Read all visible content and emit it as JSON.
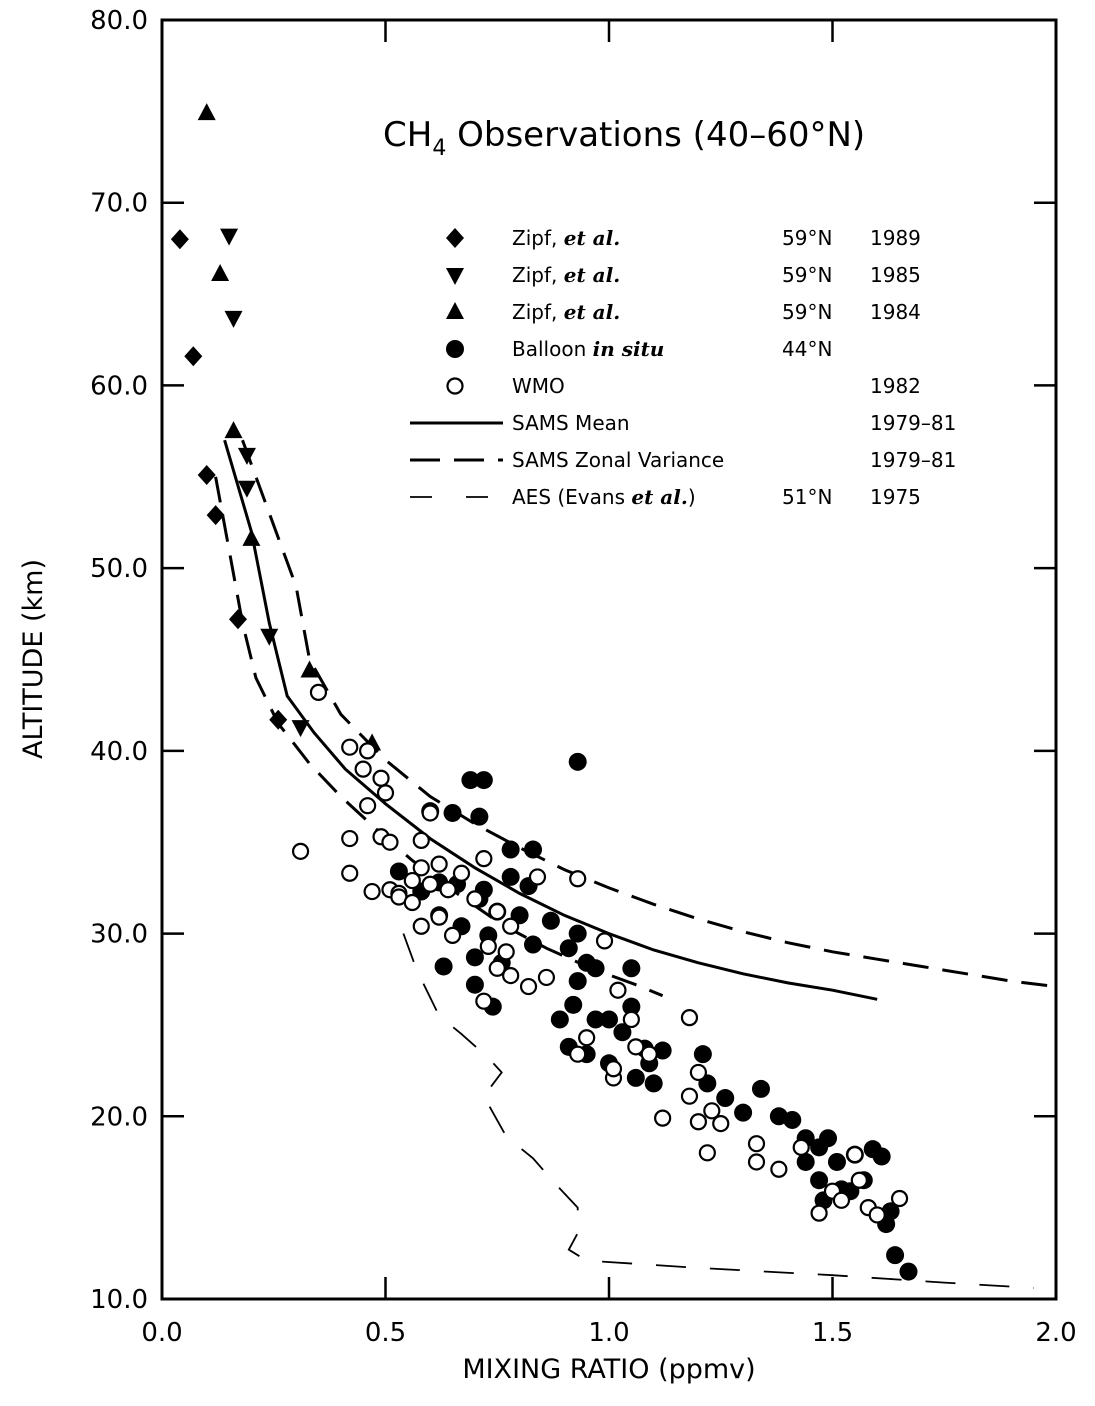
{
  "chart_data": {
    "type": "scatter",
    "title_main": "CH",
    "title_sub": "4",
    "title_rest": " Observations (40–60°N)",
    "xlabel": "MIXING RATIO (ppmv)",
    "ylabel": "ALTITUDE (km)",
    "xlim": [
      0.0,
      2.0
    ],
    "ylim": [
      10.0,
      80.0
    ],
    "xticks": [
      0.0,
      0.5,
      1.0,
      1.5,
      2.0
    ],
    "xtick_labels": [
      "0.0",
      "0.5",
      "1.0",
      "1.5",
      "2.0"
    ],
    "yticks": [
      10,
      20,
      30,
      40,
      50,
      60,
      70,
      80
    ],
    "ytick_labels": [
      "10.0",
      "20.0",
      "30.0",
      "40.0",
      "50.0",
      "60.0",
      "70.0",
      "80.0"
    ],
    "legend_position": "upper-right",
    "legend": [
      {
        "symbol": "diamond",
        "pre": "Zipf, ",
        "em": "et al.",
        "post": "",
        "lat": "59°N",
        "year": "1989"
      },
      {
        "symbol": "triangle-down",
        "pre": "Zipf, ",
        "em": "et al.",
        "post": "",
        "lat": "59°N",
        "year": "1985"
      },
      {
        "symbol": "triangle-up",
        "pre": "Zipf, ",
        "em": "et al.",
        "post": "",
        "lat": "59°N",
        "year": "1984"
      },
      {
        "symbol": "filled-circle",
        "pre": "Balloon ",
        "em": "in situ",
        "post": "",
        "lat": "44°N",
        "year": ""
      },
      {
        "symbol": "open-circle",
        "pre": "WMO",
        "em": "",
        "post": "",
        "lat": "",
        "year": "1982"
      },
      {
        "symbol": "solid-line",
        "pre": "SAMS Mean",
        "em": "",
        "post": "",
        "lat": "",
        "year": "1979–81"
      },
      {
        "symbol": "long-dash",
        "pre": "SAMS Zonal Variance",
        "em": "",
        "post": "",
        "lat": "",
        "year": "1979–81"
      },
      {
        "symbol": "short-dash",
        "pre": "AES (Evans ",
        "em": "et al.",
        "post": ")",
        "lat": "51°N",
        "year": "1975"
      }
    ],
    "series": [
      {
        "name": "Zipf, et al. 59°N 1989",
        "marker": "diamond",
        "points": [
          [
            0.04,
            68.0
          ],
          [
            0.07,
            61.6
          ],
          [
            0.1,
            55.1
          ],
          [
            0.12,
            52.9
          ],
          [
            0.17,
            47.2
          ],
          [
            0.26,
            41.7
          ]
        ]
      },
      {
        "name": "Zipf, et al. 59°N 1985",
        "marker": "triangle-down",
        "points": [
          [
            0.15,
            68.2
          ],
          [
            0.16,
            63.7
          ],
          [
            0.19,
            56.2
          ],
          [
            0.19,
            54.4
          ],
          [
            0.24,
            46.3
          ],
          [
            0.31,
            41.3
          ]
        ]
      },
      {
        "name": "Zipf, et al. 59°N 1984",
        "marker": "triangle-up",
        "points": [
          [
            0.1,
            74.9
          ],
          [
            0.13,
            66.1
          ],
          [
            0.16,
            57.5
          ],
          [
            0.2,
            51.6
          ],
          [
            0.33,
            44.4
          ],
          [
            0.47,
            40.4
          ]
        ]
      },
      {
        "name": "Balloon in situ 44°N",
        "marker": "filled-circle",
        "points": [
          [
            0.93,
            39.4
          ],
          [
            0.69,
            38.4
          ],
          [
            0.72,
            38.4
          ],
          [
            0.71,
            36.4
          ],
          [
            0.6,
            36.7
          ],
          [
            0.65,
            36.6
          ],
          [
            0.78,
            34.6
          ],
          [
            0.83,
            34.6
          ],
          [
            0.53,
            33.4
          ],
          [
            0.62,
            32.8
          ],
          [
            0.66,
            32.7
          ],
          [
            0.72,
            32.4
          ],
          [
            0.78,
            33.1
          ],
          [
            0.82,
            32.6
          ],
          [
            0.58,
            32.3
          ],
          [
            0.71,
            31.9
          ],
          [
            0.75,
            31.2
          ],
          [
            0.8,
            31.0
          ],
          [
            0.62,
            31.0
          ],
          [
            0.67,
            30.4
          ],
          [
            0.87,
            30.7
          ],
          [
            0.93,
            30.0
          ],
          [
            0.73,
            29.9
          ],
          [
            0.63,
            28.2
          ],
          [
            0.7,
            28.7
          ],
          [
            0.76,
            28.4
          ],
          [
            0.83,
            29.4
          ],
          [
            0.91,
            29.2
          ],
          [
            0.95,
            28.4
          ],
          [
            0.97,
            28.1
          ],
          [
            0.93,
            27.4
          ],
          [
            0.7,
            27.2
          ],
          [
            0.74,
            26.0
          ],
          [
            1.05,
            28.1
          ],
          [
            1.05,
            26.0
          ],
          [
            0.92,
            26.1
          ],
          [
            0.97,
            25.3
          ],
          [
            0.89,
            25.3
          ],
          [
            1.0,
            25.3
          ],
          [
            0.91,
            23.8
          ],
          [
            0.95,
            23.4
          ],
          [
            1.0,
            22.9
          ],
          [
            1.03,
            24.6
          ],
          [
            1.08,
            23.7
          ],
          [
            1.06,
            22.1
          ],
          [
            1.09,
            22.9
          ],
          [
            1.1,
            21.8
          ],
          [
            1.12,
            23.6
          ],
          [
            1.21,
            23.4
          ],
          [
            1.22,
            21.8
          ],
          [
            1.26,
            21.0
          ],
          [
            1.3,
            20.2
          ],
          [
            1.34,
            21.5
          ],
          [
            1.38,
            20.0
          ],
          [
            1.41,
            19.8
          ],
          [
            1.44,
            18.8
          ],
          [
            1.47,
            18.3
          ],
          [
            1.49,
            18.8
          ],
          [
            1.51,
            17.5
          ],
          [
            1.55,
            17.9
          ],
          [
            1.59,
            18.2
          ],
          [
            1.61,
            17.8
          ],
          [
            1.44,
            17.5
          ],
          [
            1.47,
            16.5
          ],
          [
            1.52,
            16.0
          ],
          [
            1.48,
            15.4
          ],
          [
            1.54,
            15.9
          ],
          [
            1.57,
            16.5
          ],
          [
            1.63,
            14.8
          ],
          [
            1.62,
            14.1
          ],
          [
            1.64,
            12.4
          ],
          [
            1.67,
            11.5
          ]
        ]
      },
      {
        "name": "WMO 1982",
        "marker": "open-circle",
        "points": [
          [
            0.35,
            43.2
          ],
          [
            0.42,
            40.2
          ],
          [
            0.46,
            40.0
          ],
          [
            0.45,
            39.0
          ],
          [
            0.49,
            38.5
          ],
          [
            0.5,
            37.7
          ],
          [
            0.46,
            37.0
          ],
          [
            0.6,
            36.6
          ],
          [
            0.42,
            35.2
          ],
          [
            0.49,
            35.3
          ],
          [
            0.51,
            35.0
          ],
          [
            0.58,
            35.1
          ],
          [
            0.31,
            34.5
          ],
          [
            0.42,
            33.3
          ],
          [
            0.51,
            32.4
          ],
          [
            0.53,
            32.2
          ],
          [
            0.56,
            32.9
          ],
          [
            0.58,
            33.6
          ],
          [
            0.62,
            33.8
          ],
          [
            0.67,
            33.3
          ],
          [
            0.72,
            34.1
          ],
          [
            0.47,
            32.3
          ],
          [
            0.53,
            32.0
          ],
          [
            0.56,
            31.7
          ],
          [
            0.6,
            32.7
          ],
          [
            0.64,
            32.4
          ],
          [
            0.7,
            31.9
          ],
          [
            0.75,
            31.2
          ],
          [
            0.78,
            30.4
          ],
          [
            0.84,
            33.1
          ],
          [
            0.93,
            33.0
          ],
          [
            0.58,
            30.4
          ],
          [
            0.62,
            30.9
          ],
          [
            0.65,
            29.9
          ],
          [
            0.73,
            29.3
          ],
          [
            0.77,
            29.0
          ],
          [
            0.72,
            26.3
          ],
          [
            0.75,
            28.1
          ],
          [
            0.78,
            27.7
          ],
          [
            0.82,
            27.1
          ],
          [
            0.86,
            27.6
          ],
          [
            0.99,
            29.6
          ],
          [
            1.02,
            26.9
          ],
          [
            1.05,
            25.3
          ],
          [
            0.93,
            23.4
          ],
          [
            0.95,
            24.3
          ],
          [
            1.01,
            22.1
          ],
          [
            1.06,
            23.8
          ],
          [
            1.01,
            22.6
          ],
          [
            1.09,
            23.4
          ],
          [
            1.12,
            19.9
          ],
          [
            1.18,
            25.4
          ],
          [
            1.2,
            22.4
          ],
          [
            1.18,
            21.1
          ],
          [
            1.2,
            19.7
          ],
          [
            1.22,
            18.0
          ],
          [
            1.23,
            20.3
          ],
          [
            1.25,
            19.6
          ],
          [
            1.33,
            18.5
          ],
          [
            1.33,
            17.5
          ],
          [
            1.38,
            17.1
          ],
          [
            1.43,
            18.3
          ],
          [
            1.47,
            14.7
          ],
          [
            1.5,
            15.9
          ],
          [
            1.55,
            17.9
          ],
          [
            1.52,
            15.4
          ],
          [
            1.56,
            16.5
          ],
          [
            1.58,
            15.0
          ],
          [
            1.6,
            14.6
          ],
          [
            1.65,
            15.5
          ]
        ]
      }
    ],
    "lines": [
      {
        "name": "SAMS Mean",
        "style": "solid",
        "points": [
          [
            0.14,
            57.0
          ],
          [
            0.2,
            52.0
          ],
          [
            0.24,
            47.0
          ],
          [
            0.28,
            43.0
          ],
          [
            0.34,
            41.0
          ],
          [
            0.41,
            39.0
          ],
          [
            0.5,
            37.1
          ],
          [
            0.6,
            35.2
          ],
          [
            0.7,
            33.6
          ],
          [
            0.8,
            32.2
          ],
          [
            0.9,
            31.0
          ],
          [
            1.0,
            30.0
          ],
          [
            1.1,
            29.1
          ],
          [
            1.2,
            28.4
          ],
          [
            1.3,
            27.8
          ],
          [
            1.4,
            27.3
          ],
          [
            1.5,
            26.9
          ],
          [
            1.6,
            26.4
          ]
        ]
      },
      {
        "name": "SAMS Zonal Variance upper",
        "style": "long-dash",
        "points": [
          [
            0.18,
            57.0
          ],
          [
            0.24,
            53.0
          ],
          [
            0.3,
            49.0
          ],
          [
            0.33,
            45.0
          ],
          [
            0.4,
            42.0
          ],
          [
            0.5,
            39.5
          ],
          [
            0.6,
            37.5
          ],
          [
            0.7,
            36.0
          ],
          [
            0.8,
            34.7
          ],
          [
            0.9,
            33.5
          ],
          [
            1.0,
            32.5
          ],
          [
            1.1,
            31.6
          ],
          [
            1.2,
            30.8
          ],
          [
            1.3,
            30.1
          ],
          [
            1.4,
            29.5
          ],
          [
            1.5,
            29.0
          ],
          [
            1.6,
            28.6
          ],
          [
            1.7,
            28.2
          ],
          [
            1.8,
            27.8
          ],
          [
            1.9,
            27.4
          ],
          [
            2.0,
            27.1
          ]
        ]
      },
      {
        "name": "SAMS Zonal Variance lower",
        "style": "long-dash",
        "points": [
          [
            0.12,
            55.0
          ],
          [
            0.15,
            51.0
          ],
          [
            0.18,
            47.0
          ],
          [
            0.21,
            44.0
          ],
          [
            0.26,
            41.5
          ],
          [
            0.33,
            39.3
          ],
          [
            0.4,
            37.5
          ],
          [
            0.48,
            35.7
          ],
          [
            0.56,
            34.0
          ],
          [
            0.66,
            32.2
          ],
          [
            0.76,
            30.5
          ],
          [
            0.86,
            29.2
          ],
          [
            0.96,
            28.1
          ],
          [
            1.06,
            27.2
          ],
          [
            1.12,
            26.6
          ]
        ]
      },
      {
        "name": "AES (Evans et al.) 51°N 1975",
        "style": "short-dash",
        "points": [
          [
            0.54,
            30.0
          ],
          [
            0.57,
            28.0
          ],
          [
            0.62,
            25.5
          ],
          [
            0.67,
            24.5
          ],
          [
            0.73,
            23.2
          ],
          [
            0.76,
            22.4
          ],
          [
            0.72,
            21.1
          ],
          [
            0.77,
            18.9
          ],
          [
            0.83,
            17.7
          ],
          [
            0.88,
            16.3
          ],
          [
            0.93,
            15.0
          ],
          [
            0.93,
            13.6
          ],
          [
            0.91,
            12.7
          ],
          [
            0.95,
            12.1
          ],
          [
            1.2,
            11.7
          ],
          [
            1.5,
            11.3
          ],
          [
            1.75,
            10.9
          ],
          [
            1.95,
            10.6
          ]
        ]
      }
    ]
  }
}
